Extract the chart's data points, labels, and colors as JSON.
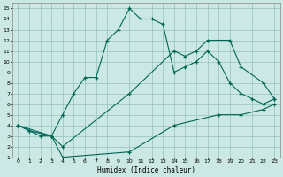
{
  "bg_color": "#cce8e4",
  "grid_color": "#9dc8c0",
  "line_color": "#006655",
  "xlabel": "Humidex (Indice chaleur)",
  "xlim": [
    -0.5,
    23.5
  ],
  "ylim": [
    1,
    15.5
  ],
  "xticks": [
    0,
    1,
    2,
    3,
    4,
    5,
    6,
    7,
    8,
    9,
    10,
    11,
    12,
    13,
    14,
    15,
    16,
    17,
    18,
    19,
    20,
    21,
    22,
    23
  ],
  "yticks": [
    1,
    2,
    3,
    4,
    5,
    6,
    7,
    8,
    9,
    10,
    11,
    12,
    13,
    14,
    15
  ],
  "line1_x": [
    0,
    1,
    2,
    3,
    4,
    5,
    6,
    7,
    8,
    9,
    10,
    11,
    12,
    13,
    14,
    15,
    16,
    17,
    18,
    19,
    20,
    21,
    22,
    23
  ],
  "line1_y": [
    4,
    3.5,
    3,
    3,
    5,
    7,
    8.5,
    8.5,
    12,
    13,
    15,
    14,
    14,
    13.5,
    9,
    9.5,
    10,
    11,
    10,
    8,
    7,
    6.5,
    6,
    6.5
  ],
  "line2_x": [
    0,
    1,
    3,
    4,
    10,
    14,
    15,
    16,
    17,
    19,
    20,
    22,
    23
  ],
  "line2_y": [
    4,
    3.5,
    3,
    2,
    7,
    11,
    10.5,
    11,
    12,
    12,
    9.5,
    8,
    6.5
  ],
  "line3_x": [
    0,
    3,
    4,
    10,
    14,
    18,
    20,
    22,
    23
  ],
  "line3_y": [
    4,
    3,
    1,
    1.5,
    4,
    5,
    5,
    5.5,
    6
  ]
}
